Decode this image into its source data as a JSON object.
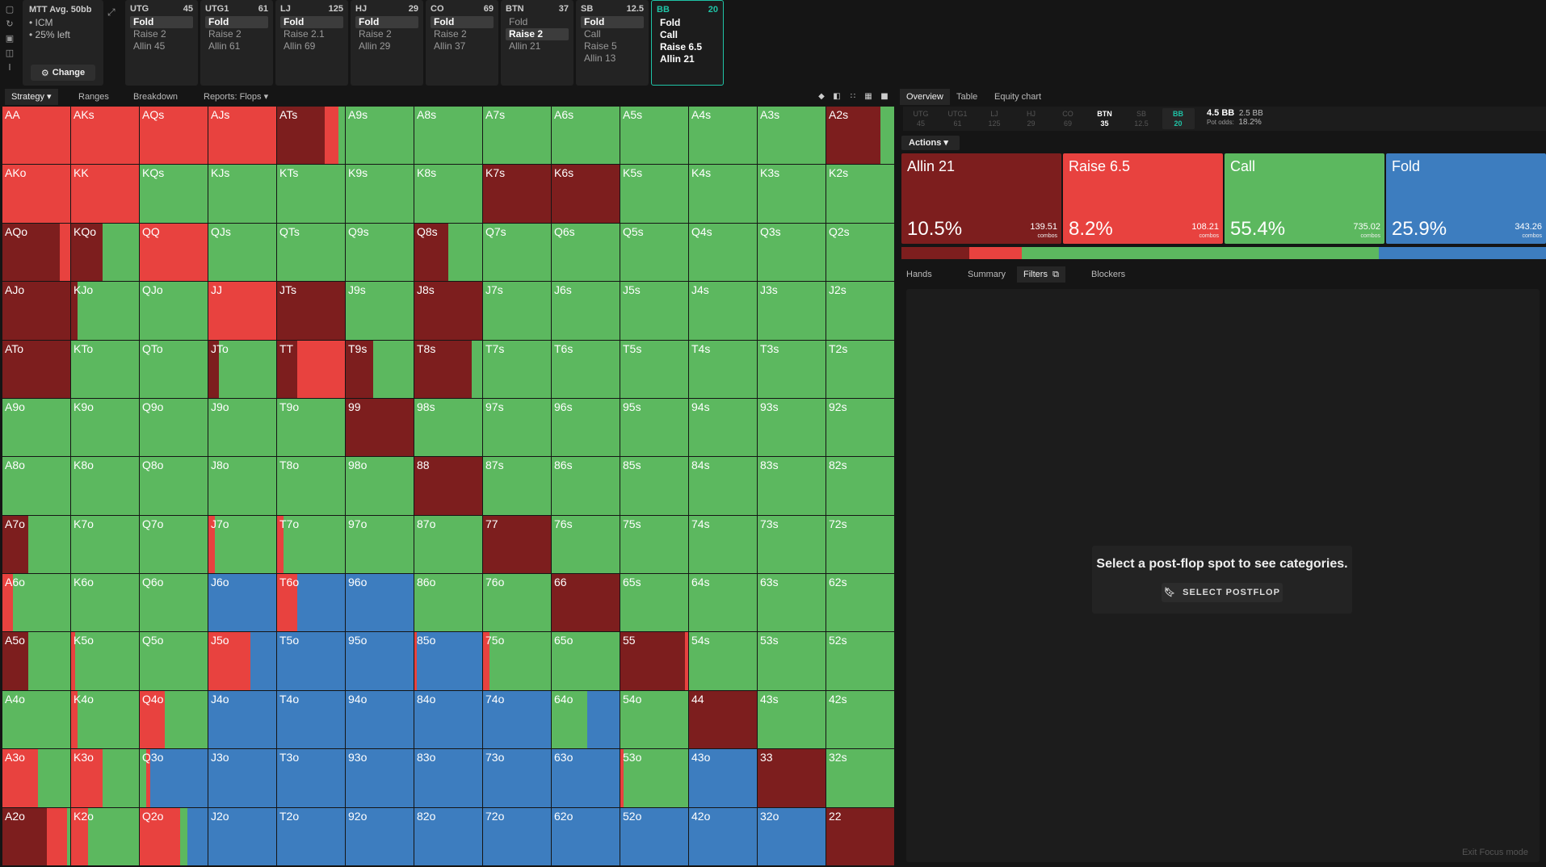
{
  "colors": {
    "allin": "#7d1e1e",
    "raise": "#e8423f",
    "call": "#5cb85f",
    "fold": "#3d7dbf",
    "accent": "#1fc3a6"
  },
  "left_rail_icons": [
    "new-doc-icon",
    "refresh-icon",
    "save-icon",
    "gamepad-icon",
    "text-cursor-icon"
  ],
  "mtt": {
    "title": "MTT  Avg. 50bb",
    "bullets": [
      "• ICM",
      "• 25% left"
    ],
    "change_label": "Change"
  },
  "positions": [
    {
      "name": "UTG",
      "stack": "45",
      "actions": [
        "Fold",
        "Raise 2",
        "Allin 45"
      ],
      "selected": 0
    },
    {
      "name": "UTG1",
      "stack": "61",
      "actions": [
        "Fold",
        "Raise 2",
        "Allin 61"
      ],
      "selected": 0
    },
    {
      "name": "LJ",
      "stack": "125",
      "actions": [
        "Fold",
        "Raise 2.1",
        "Allin 69"
      ],
      "selected": 0
    },
    {
      "name": "HJ",
      "stack": "29",
      "actions": [
        "Fold",
        "Raise 2",
        "Allin 29"
      ],
      "selected": 0
    },
    {
      "name": "CO",
      "stack": "69",
      "actions": [
        "Fold",
        "Raise 2",
        "Allin 37"
      ],
      "selected": 0
    },
    {
      "name": "BTN",
      "stack": "37",
      "actions": [
        "Fold",
        "Raise 2",
        "Allin 21"
      ],
      "selected": 1
    },
    {
      "name": "SB",
      "stack": "12.5",
      "actions": [
        "Fold",
        "Call",
        "Raise 5",
        "Allin 13"
      ],
      "selected": 0
    },
    {
      "name": "BB",
      "stack": "20",
      "actions": [
        "Fold",
        "Call",
        "Raise 6.5",
        "Allin 21"
      ],
      "selected": -1,
      "active": true
    }
  ],
  "left_toolbar": {
    "tabs": [
      "Strategy",
      "Ranges",
      "Breakdown",
      "Reports: Flops"
    ],
    "active": "Strategy"
  },
  "grid": [
    [
      "AA:r",
      "AKs:r",
      "AQs:r",
      "AJs:r",
      "ATs:a70r20g10",
      "A9s:g",
      "A8s:g",
      "A7s:g",
      "A6s:g",
      "A5s:g",
      "A4s:g",
      "A3s:g",
      "A2s:a80g20"
    ],
    [
      "AKo:r",
      "KK:r",
      "KQs:g",
      "KJs:g",
      "KTs:g",
      "K9s:g",
      "K8s:g",
      "K7s:a",
      "K6s:a",
      "K5s:g",
      "K4s:g",
      "K3s:g",
      "K2s:g"
    ],
    [
      "AQo:a85r15",
      "KQo:a47g53",
      "QQ:r",
      "QJs:g",
      "QTs:g",
      "Q9s:g",
      "Q8s:a50g50",
      "Q7s:g",
      "Q6s:g",
      "Q5s:g",
      "Q4s:g",
      "Q3s:g",
      "Q2s:g"
    ],
    [
      "AJo:a",
      "KJo:a10g90",
      "QJo:g",
      "JJ:r",
      "JTs:a",
      "J9s:g",
      "J8s:a",
      "J7s:g",
      "J6s:g",
      "J5s:g",
      "J4s:g",
      "J3s:g",
      "J2s:g"
    ],
    [
      "ATo:a",
      "KTo:g",
      "QTo:g",
      "JTo:a15g85",
      "TT:a30r70",
      "T9s:a40g60",
      "T8s:a85g15",
      "T7s:g",
      "T6s:g",
      "T5s:g",
      "T4s:g",
      "T3s:g",
      "T2s:g"
    ],
    [
      "A9o:g",
      "K9o:g",
      "Q9o:g",
      "J9o:g",
      "T9o:g",
      "99:a",
      "98s:g",
      "97s:g",
      "96s:g",
      "95s:g",
      "94s:g",
      "93s:g",
      "92s:g"
    ],
    [
      "A8o:g",
      "K8o:g",
      "Q8o:g",
      "J8o:g",
      "T8o:g",
      "98o:g",
      "88:a",
      "87s:g",
      "86s:g",
      "85s:g",
      "84s:g",
      "83s:g",
      "82s:g"
    ],
    [
      "A7o:a38g62",
      "K7o:g",
      "Q7o:g",
      "J7o:r10g90",
      "T7o:r10g90",
      "97o:g",
      "87o:g",
      "77:a",
      "76s:g",
      "75s:g",
      "74s:g",
      "73s:g",
      "72s:g"
    ],
    [
      "A6o:r15g85",
      "K6o:g",
      "Q6o:g",
      "J6o:b",
      "T6o:r30b70",
      "96o:b",
      "86o:g",
      "76o:g",
      "66:a",
      "65s:g",
      "64s:g",
      "63s:g",
      "62s:g"
    ],
    [
      "A5o:a38g62",
      "K5o:r6g94",
      "Q5o:g",
      "J5o:r62b38",
      "T5o:b",
      "95o:b",
      "85o:r4b96",
      "75o:r10g90",
      "65o:g",
      "55:a95r5",
      "54s:g",
      "53s:g",
      "52s:g"
    ],
    [
      "A4o:g",
      "K4o:r10g90",
      "Q4o:r37g63",
      "J4o:b",
      "T4o:b",
      "94o:b",
      "84o:b",
      "74o:b",
      "64o:g52b48",
      "54o:g",
      "44:a",
      "43s:g",
      "42s:g"
    ],
    [
      "A3o:r52g48",
      "K3o:r47g53",
      "Q3o:g10r5b85",
      "J3o:b",
      "T3o:b",
      "93o:b",
      "83o:b",
      "73o:b",
      "63o:b",
      "53o:r5g95",
      "43o:b",
      "33:a",
      "32s:g"
    ],
    [
      "A2o:a65r30g5",
      "K2o:r25g75",
      "Q2o:r60g10b30",
      "J2o:b",
      "T2o:b",
      "92o:b",
      "82o:b",
      "72o:b",
      "62o:b",
      "52o:b",
      "42o:b",
      "32o:b",
      "22:a"
    ]
  ],
  "right_tabs": {
    "tabs": [
      "Overview",
      "Table",
      "Equity chart"
    ],
    "active": "Overview"
  },
  "pos_chips": [
    {
      "name": "UTG",
      "val": "45"
    },
    {
      "name": "UTG1",
      "val": "61"
    },
    {
      "name": "LJ",
      "val": "125"
    },
    {
      "name": "HJ",
      "val": "29"
    },
    {
      "name": "CO",
      "val": "69"
    },
    {
      "name": "BTN",
      "val": "35"
    },
    {
      "name": "SB",
      "val": "12.5"
    },
    {
      "name": "BB",
      "val": "20"
    }
  ],
  "pot": {
    "value": "4.5 BB",
    "extra": "2.5 BB",
    "odds_label": "Pot odds:",
    "odds": "18.2%"
  },
  "actions_label": "Actions",
  "action_cards": [
    {
      "name": "Allin 21",
      "pct": "10.5%",
      "combos": "139.51",
      "combos_label": "combos",
      "color": "#7d1e1e"
    },
    {
      "name": "Raise 6.5",
      "pct": "8.2%",
      "combos": "108.21",
      "combos_label": "combos",
      "color": "#e8423f"
    },
    {
      "name": "Call",
      "pct": "55.4%",
      "combos": "735.02",
      "combos_label": "combos",
      "color": "#5cb85f"
    },
    {
      "name": "Fold",
      "pct": "25.9%",
      "combos": "343.26",
      "combos_label": "combos",
      "color": "#3d7dbf"
    }
  ],
  "freq_bar": [
    {
      "action": "allin",
      "frac": 0.105
    },
    {
      "action": "raise",
      "frac": 0.082
    },
    {
      "action": "call",
      "frac": 0.554
    },
    {
      "action": "fold",
      "frac": 0.259
    }
  ],
  "sub_tabs": {
    "tabs": [
      "Hands",
      "Summary",
      "Filters",
      "Blockers"
    ],
    "active": "Filters"
  },
  "filters": {
    "message": "Select a post-flop spot to see categories.",
    "button": "SELECT POSTFLOP"
  },
  "exit_focus": "Exit Focus mode"
}
